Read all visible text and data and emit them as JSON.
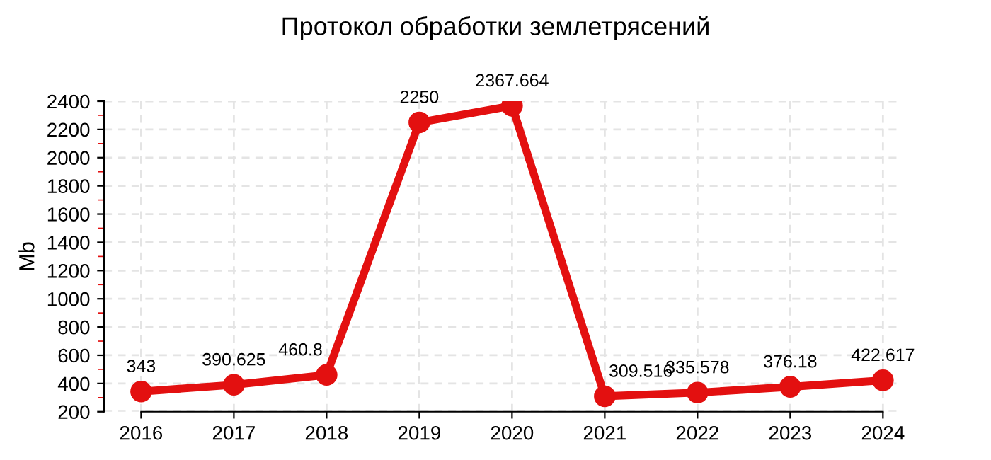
{
  "chart_data": {
    "type": "line",
    "title": "Протокол обработки землетрясений",
    "ylabel": "Mb",
    "categories": [
      "2016",
      "2017",
      "2018",
      "2019",
      "2020",
      "2021",
      "2022",
      "2023",
      "2024"
    ],
    "series": [
      {
        "color": "#e31010",
        "values": [
          343,
          390.625,
          460.8,
          2250,
          2367.664,
          309.516,
          335.578,
          376.18,
          422.617
        ]
      }
    ],
    "ylim": [
      200,
      2400
    ],
    "yticks": [
      200,
      400,
      600,
      800,
      1000,
      1200,
      1400,
      1600,
      1800,
      2000,
      2200,
      2400
    ],
    "grid": true,
    "marker": "circle",
    "line_style": "solid",
    "data_labels": true
  }
}
